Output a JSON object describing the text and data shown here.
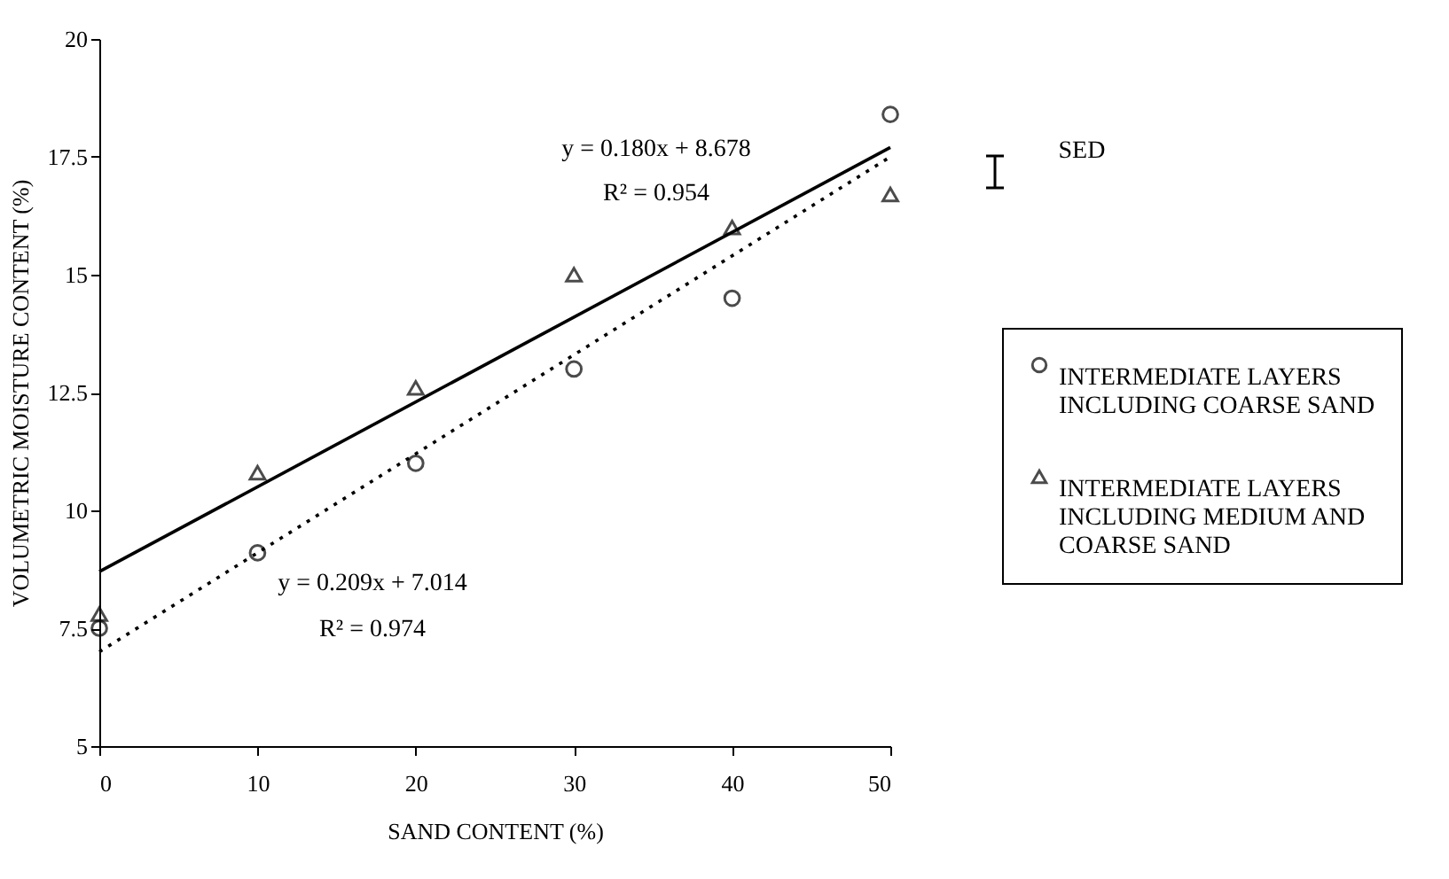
{
  "chart_data": {
    "type": "scatter",
    "xlabel": "SAND CONTENT (%)",
    "ylabel": "VOLUMETRIC MOISTURE CONTENT (%)",
    "xlim": [
      0,
      50
    ],
    "xticks": [
      0,
      10,
      20,
      30,
      40,
      50
    ],
    "ylim": [
      5,
      20
    ],
    "yticks": [
      5,
      7.5,
      10,
      12.5,
      15,
      17.5,
      20
    ],
    "grid": false,
    "legend": "right",
    "series": [
      {
        "name": "INTERMEDIATE LAYERS INCLUDING COARSE SAND",
        "type": "scatter",
        "marker": "circle",
        "color": "#000000",
        "x": [
          0,
          10,
          20,
          30,
          40,
          50
        ],
        "values": [
          7.5,
          9.1,
          11.0,
          13.0,
          14.5,
          18.4
        ]
      },
      {
        "name": "INTERMEDIATE LAYERS INCLUDING MEDIUM AND COARSE SAND",
        "type": "scatter",
        "marker": "triangle",
        "color": "#000000",
        "x": [
          0,
          10,
          20,
          30,
          40,
          50
        ],
        "values": [
          7.8,
          10.8,
          12.6,
          15.0,
          16.0,
          16.7
        ]
      },
      {
        "type": "line",
        "line_style": "solid",
        "marker": "none",
        "color": "#000000",
        "x": [
          0,
          50
        ],
        "values": [
          8.7,
          17.7
        ]
      },
      {
        "type": "line",
        "line_style": "dotted",
        "marker": "none",
        "color": "#000000",
        "x": [
          0,
          50
        ],
        "values": [
          7.0,
          17.5
        ]
      }
    ],
    "annotations": [
      "y = 0.180x + 8.678",
      "R² = 0.954",
      "y = 0.209x + 7.014",
      "R² = 0.974",
      "SED"
    ]
  }
}
